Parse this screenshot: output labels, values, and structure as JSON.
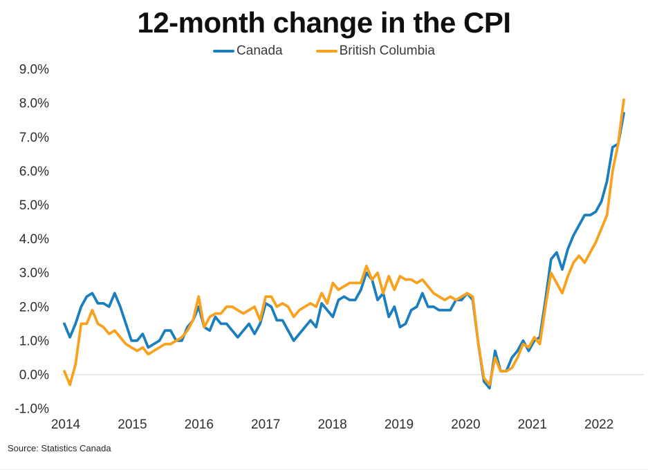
{
  "chart_data": {
    "type": "line",
    "title": "12-month change in the CPI",
    "source_note": "Source: Statistics Canada",
    "x_unit": "monthly",
    "x_start": "2014-01",
    "x_end": "2022-05",
    "x_points": 101,
    "x_tick_labels": [
      "2014",
      "2015",
      "2016",
      "2017",
      "2018",
      "2019",
      "2020",
      "2021",
      "2022"
    ],
    "y_tick_values": [
      9,
      8,
      7,
      6,
      5,
      4,
      3,
      2,
      1,
      0,
      -1
    ],
    "y_tick_labels": [
      "9.0%",
      "8.0%",
      "7.0%",
      "6.0%",
      "5.0%",
      "4.0%",
      "3.0%",
      "2.0%",
      "1.0%",
      "0.0%",
      "-1.0%"
    ],
    "ylim": [
      -1.0,
      9.0
    ],
    "grid": "zero-line-only",
    "legend_position": "top-center",
    "colors": {
      "canada": "#1b7fbf",
      "british_columbia": "#f8a11d",
      "zero_line": "#dcdcdc",
      "title": "#0f0f0f",
      "axis_text": "#2e2e2e"
    },
    "series": [
      {
        "name": "Canada",
        "color": "#1b7fbf",
        "values": [
          1.5,
          1.1,
          1.5,
          2.0,
          2.3,
          2.4,
          2.1,
          2.1,
          2.0,
          2.4,
          2.0,
          1.5,
          1.0,
          1.0,
          1.2,
          0.8,
          0.9,
          1.0,
          1.3,
          1.3,
          1.0,
          1.0,
          1.4,
          1.6,
          2.0,
          1.4,
          1.3,
          1.7,
          1.5,
          1.5,
          1.3,
          1.1,
          1.3,
          1.5,
          1.2,
          1.5,
          2.1,
          2.0,
          1.6,
          1.6,
          1.3,
          1.0,
          1.2,
          1.4,
          1.6,
          1.4,
          2.1,
          1.9,
          1.7,
          2.2,
          2.3,
          2.2,
          2.2,
          2.5,
          3.0,
          2.8,
          2.2,
          2.4,
          1.7,
          2.0,
          1.4,
          1.5,
          1.9,
          2.0,
          2.4,
          2.0,
          2.0,
          1.9,
          1.9,
          1.9,
          2.2,
          2.2,
          2.4,
          2.2,
          0.9,
          -0.2,
          -0.4,
          0.7,
          0.1,
          0.1,
          0.5,
          0.7,
          1.0,
          0.7,
          1.0,
          1.1,
          2.2,
          3.4,
          3.6,
          3.1,
          3.7,
          4.1,
          4.4,
          4.7,
          4.7,
          4.8,
          5.1,
          5.7,
          6.7,
          6.8,
          7.7
        ]
      },
      {
        "name": "British Columbia",
        "color": "#f8a11d",
        "values": [
          0.1,
          -0.3,
          0.3,
          1.5,
          1.5,
          1.9,
          1.5,
          1.4,
          1.2,
          1.3,
          1.1,
          0.9,
          0.8,
          0.7,
          0.8,
          0.6,
          0.7,
          0.8,
          0.9,
          0.9,
          1.0,
          1.1,
          1.3,
          1.6,
          2.3,
          1.4,
          1.7,
          1.8,
          1.8,
          2.0,
          2.0,
          1.9,
          1.8,
          1.9,
          2.0,
          1.6,
          2.3,
          2.3,
          2.0,
          2.1,
          2.0,
          1.7,
          1.9,
          2.0,
          2.1,
          2.0,
          2.4,
          2.1,
          2.7,
          2.5,
          2.6,
          2.7,
          2.7,
          2.7,
          3.2,
          2.8,
          3.0,
          2.4,
          2.9,
          2.5,
          2.9,
          2.8,
          2.8,
          2.7,
          2.8,
          2.6,
          2.4,
          2.3,
          2.2,
          2.3,
          2.2,
          2.3,
          2.4,
          2.3,
          0.9,
          -0.1,
          -0.3,
          0.5,
          0.1,
          0.1,
          0.2,
          0.5,
          0.9,
          0.8,
          1.1,
          0.9,
          2.0,
          3.0,
          2.7,
          2.4,
          2.9,
          3.3,
          3.5,
          3.3,
          3.6,
          3.9,
          4.3,
          4.7,
          6.0,
          6.8,
          8.1
        ]
      }
    ]
  }
}
